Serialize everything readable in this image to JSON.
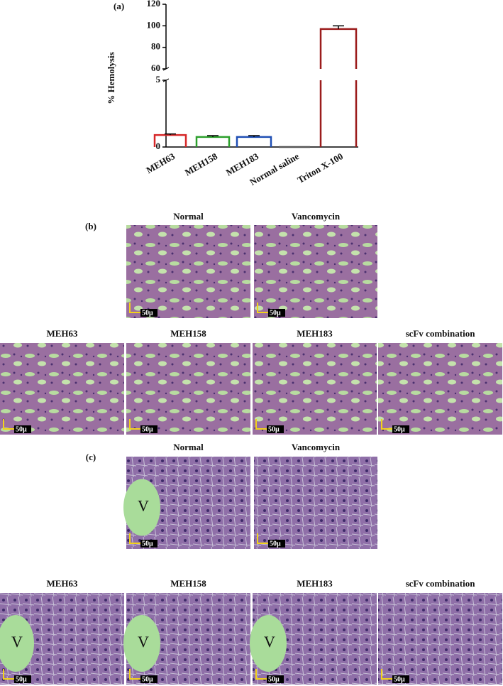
{
  "chart_data": {
    "type": "bar",
    "label": "(a)",
    "y_label": "% Hemolysis",
    "categories": [
      "MEH63",
      "MEH158",
      "MEH183",
      "Normal saline",
      "Triton X-100"
    ],
    "values": [
      0.9,
      0.75,
      0.75,
      0,
      97
    ],
    "errors": [
      0.08,
      0.1,
      0.1,
      null,
      3
    ],
    "colors": [
      "#d62728",
      "#2ca02c",
      "#1f4fb4",
      "#555555",
      "#9b1c1c"
    ],
    "ylim": [
      0,
      120
    ],
    "axis_break": [
      5,
      60
    ],
    "yticks": [
      0,
      5,
      60,
      80,
      100,
      120
    ]
  },
  "panels": [
    {
      "label": "(b)",
      "images": [
        {
          "title": "Normal",
          "scale": "50μ"
        },
        {
          "title": "Vancomycin",
          "scale": "50μ"
        },
        {
          "title": "MEH63",
          "scale": "50μ"
        },
        {
          "title": "MEH158",
          "scale": "50μ"
        },
        {
          "title": "MEH183",
          "scale": "50μ"
        },
        {
          "title": "scFv combination",
          "scale": "50μ"
        }
      ]
    },
    {
      "label": "(c)",
      "images": [
        {
          "title": "Normal",
          "scale": "50μ",
          "mark": "V"
        },
        {
          "title": "Vancomycin",
          "scale": "50μ"
        },
        {
          "title": "MEH63",
          "scale": "50μ",
          "mark": "V"
        },
        {
          "title": "MEH158",
          "scale": "50μ",
          "mark": "V"
        },
        {
          "title": "MEH183",
          "scale": "50μ",
          "mark": "V"
        },
        {
          "title": "scFv combination",
          "scale": "50μ"
        }
      ]
    }
  ]
}
